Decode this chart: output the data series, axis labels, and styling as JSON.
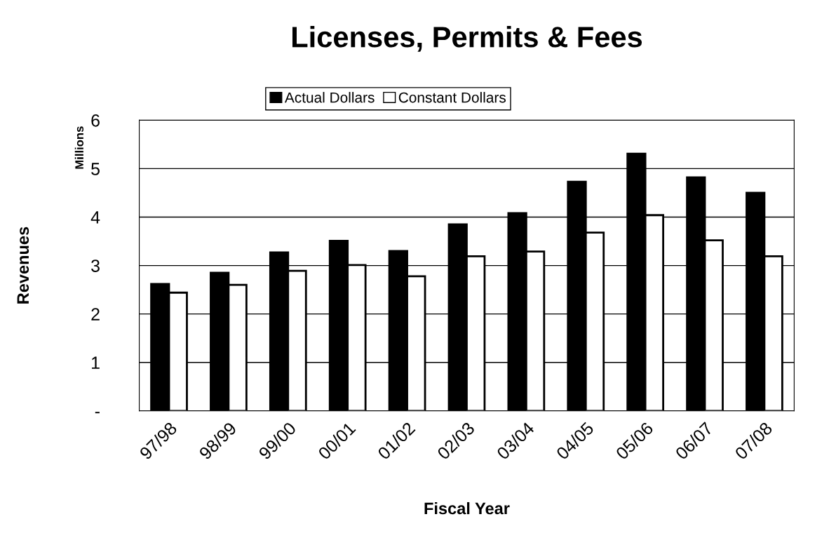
{
  "chart_data": {
    "type": "bar",
    "title": "Licenses, Permits & Fees",
    "xlabel": "Fiscal Year",
    "ylabel": "Revenues",
    "annotations": [
      "Millions"
    ],
    "categories": [
      "97/98",
      "98/99",
      "99/00",
      "00/01",
      "01/02",
      "02/03",
      "03/04",
      "04/05",
      "05/06",
      "06/07",
      "07/08"
    ],
    "series": [
      {
        "name": "Actual Dollars",
        "color": "#000000",
        "values": [
          2.62,
          2.85,
          3.27,
          3.51,
          3.3,
          3.85,
          4.08,
          4.73,
          5.31,
          4.82,
          4.5
        ]
      },
      {
        "name": "Constant Dollars",
        "color": "#ffffff",
        "values": [
          2.44,
          2.6,
          2.89,
          3.01,
          2.78,
          3.19,
          3.29,
          3.68,
          4.04,
          3.52,
          3.19
        ]
      }
    ],
    "ylim": [
      0,
      6
    ],
    "yticks": [
      {
        "value": 0,
        "label": "-"
      },
      1,
      2,
      3,
      4,
      5,
      6
    ],
    "grid": "y",
    "legend": "top"
  }
}
